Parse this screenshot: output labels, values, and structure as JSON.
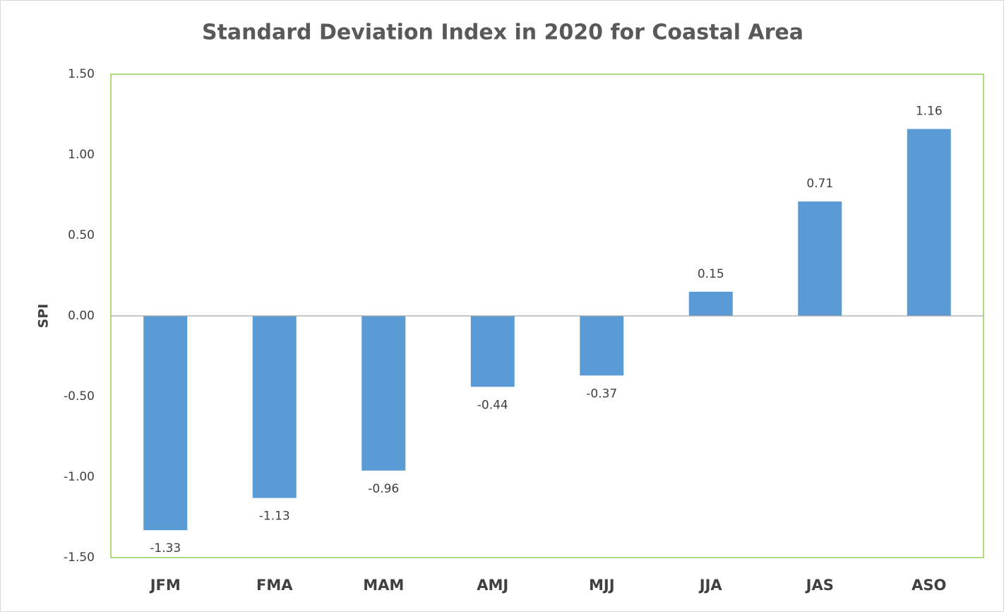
{
  "chart_data": {
    "type": "bar",
    "title": "Standard Deviation Index in 2020 for Coastal Area",
    "y_label": "SPI",
    "categories": [
      "JFM",
      "FMA",
      "MAM",
      "AMJ",
      "MJJ",
      "JJA",
      "JAS",
      "ASO"
    ],
    "values": [
      -1.33,
      -1.13,
      -0.96,
      -0.44,
      -0.37,
      0.15,
      0.71,
      1.16
    ],
    "color": "#5b9bd5",
    "ylim": [
      -1.5,
      1.5
    ],
    "yticks": [
      {
        "value": -1.5,
        "label": "-1.50"
      },
      {
        "value": -1.0,
        "label": "-1.00"
      },
      {
        "value": -0.5,
        "label": "-0.50"
      },
      {
        "value": 0,
        "label": "0.00"
      },
      {
        "value": 0.5,
        "label": "0.50"
      },
      {
        "value": 1.0,
        "label": "1.00"
      },
      {
        "value": 1.5,
        "label": "1.50"
      }
    ],
    "grid": false
  }
}
